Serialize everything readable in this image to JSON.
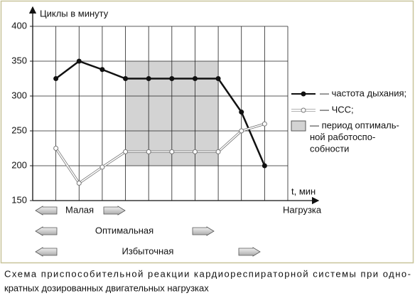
{
  "chart_data": {
    "type": "line",
    "y_label": "Циклы в минуту",
    "x_label": "t, мин",
    "categories": [
      null,
      null,
      null,
      null,
      null,
      null,
      null,
      null,
      null,
      null
    ],
    "series": [
      {
        "name": "— частота дыхания;",
        "color": "#111111",
        "marker": "filled",
        "values": [
          325,
          350,
          338,
          325,
          325,
          325,
          325,
          325,
          277,
          200
        ]
      },
      {
        "name": "— ЧСС;",
        "color": "#bbbbbb",
        "marker": "hollow",
        "values": [
          225,
          175,
          198,
          220,
          220,
          220,
          220,
          220,
          250,
          260
        ]
      }
    ],
    "shade": {
      "name": [
        "— период оптималь-",
        "ной работоспо-",
        "собности"
      ],
      "color": "#d3d3d3",
      "ylim": [
        200,
        350
      ]
    },
    "ylim": [
      150,
      400
    ],
    "yticks": [
      150,
      200,
      250,
      300,
      350,
      400
    ],
    "grid": true,
    "load_label": "Нагрузка",
    "load_levels": [
      "Малая",
      "Оптимальная",
      "Избыточная"
    ],
    "caption": [
      "Схема приспособительной реакции кардиореспираторной системы при одно-",
      "кратных дозированных двигательных нагрузках"
    ]
  }
}
